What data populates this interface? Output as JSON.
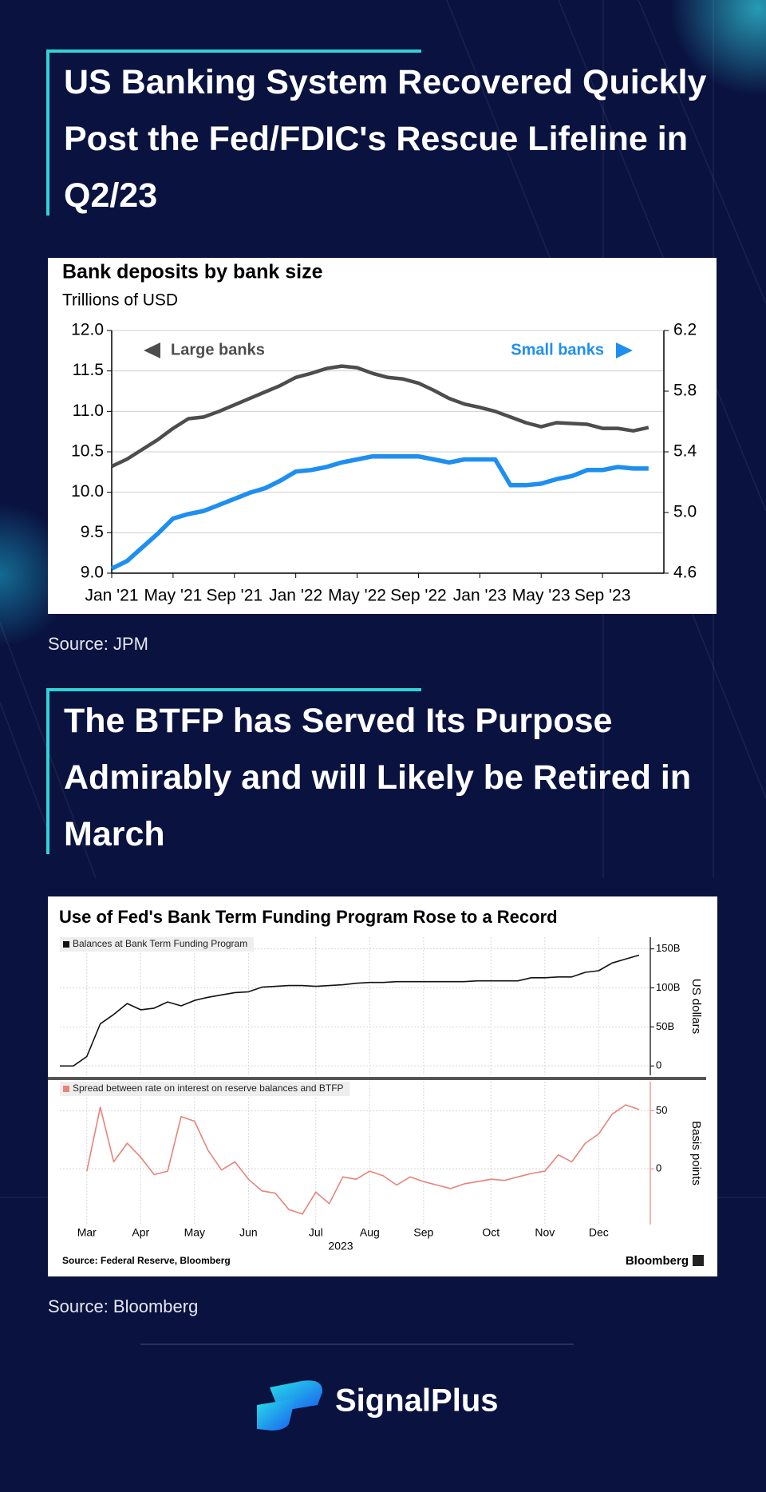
{
  "sections": [
    {
      "heading": "US Banking System Recovered Quickly Post the Fed/FDIC's Rescue Lifeline in Q2/23",
      "source": "Source: JPM"
    },
    {
      "heading": "The BTFP has Served Its Purpose Admirably and will Likely be Retired in March",
      "source": "Source: Bloomberg"
    }
  ],
  "chart_data": [
    {
      "type": "line",
      "title": "Bank deposits by bank size",
      "subtitle": "Trillions of USD",
      "x": [
        "2021-01",
        "2021-02",
        "2021-03",
        "2021-04",
        "2021-05",
        "2021-06",
        "2021-07",
        "2021-08",
        "2021-09",
        "2021-10",
        "2021-11",
        "2021-12",
        "2022-01",
        "2022-02",
        "2022-03",
        "2022-04",
        "2022-05",
        "2022-06",
        "2022-07",
        "2022-08",
        "2022-09",
        "2022-10",
        "2022-11",
        "2022-12",
        "2023-01",
        "2023-02",
        "2023-03",
        "2023-04",
        "2023-05",
        "2023-06",
        "2023-07",
        "2023-08",
        "2023-09",
        "2023-10",
        "2023-11",
        "2023-12"
      ],
      "xlim": [
        "2021-01",
        "2024-01"
      ],
      "xticks": [
        {
          "value": "2021-01",
          "label": "Jan '21"
        },
        {
          "value": "2021-05",
          "label": "May '21"
        },
        {
          "value": "2021-09",
          "label": "Sep '21"
        },
        {
          "value": "2022-01",
          "label": "Jan '22"
        },
        {
          "value": "2022-05",
          "label": "May '22"
        },
        {
          "value": "2022-09",
          "label": "Sep '22"
        },
        {
          "value": "2023-01",
          "label": "Jan '23"
        },
        {
          "value": "2023-05",
          "label": "May '23"
        },
        {
          "value": "2023-09",
          "label": "Sep '23"
        }
      ],
      "ylim": [
        9,
        12
      ],
      "yticks": [
        {
          "value": 9,
          "label": "9.0"
        },
        9.5,
        {
          "value": 10,
          "label": "10.0"
        },
        10.5,
        {
          "value": 11,
          "label": "11.0"
        },
        11.5,
        {
          "value": 12,
          "label": "12.0"
        }
      ],
      "y2lim": [
        4.6,
        6.2
      ],
      "y2ticks": [
        4.6,
        {
          "value": 5,
          "label": "5.0"
        },
        5.4,
        5.8,
        6.2
      ],
      "grid": true,
      "series": [
        {
          "name": "Large banks",
          "color": "#4d4d4d",
          "values": [
            10.32,
            10.41,
            10.53,
            10.65,
            10.79,
            10.91,
            10.93,
            11.0,
            11.08,
            11.16,
            11.24,
            11.32,
            11.42,
            11.47,
            11.53,
            11.56,
            11.54,
            11.47,
            11.42,
            11.4,
            11.35,
            11.26,
            11.16,
            11.09,
            11.05,
            11.0,
            10.93,
            10.86,
            10.81,
            10.86,
            10.85,
            10.84,
            10.79,
            10.79,
            10.76,
            10.8
          ]
        },
        {
          "name": "Small banks",
          "color": "#1e8ff0",
          "axis": "y2",
          "values": [
            4.63,
            4.68,
            4.77,
            4.86,
            4.96,
            4.99,
            5.01,
            5.05,
            5.09,
            5.13,
            5.16,
            5.21,
            5.27,
            5.28,
            5.3,
            5.33,
            5.35,
            5.37,
            5.37,
            5.37,
            5.37,
            5.35,
            5.33,
            5.35,
            5.35,
            5.35,
            5.18,
            5.18,
            5.19,
            5.22,
            5.24,
            5.28,
            5.28,
            5.3,
            5.29,
            5.29
          ]
        }
      ]
    },
    {
      "type": "line",
      "title": "Use of Fed's Bank Term Funding Program Rose to a Record",
      "categories": [
        null,
        null,
        "Mar",
        null,
        null,
        null,
        "Apr",
        null,
        null,
        null,
        "May",
        null,
        null,
        null,
        "Jun",
        null,
        null,
        null,
        null,
        "Jul",
        null,
        null,
        null,
        "Aug",
        null,
        null,
        null,
        "Sep",
        null,
        null,
        null,
        null,
        "Oct",
        null,
        null,
        null,
        "Nov",
        null,
        null,
        null,
        "Dec",
        null,
        null,
        null
      ],
      "x_label": "2023",
      "grid": true,
      "panels": [
        {
          "y_label": "US dollars",
          "ylim": [
            -12,
            165
          ],
          "yticks": [
            0,
            {
              "value": 50,
              "label": "50B"
            },
            {
              "value": 100,
              "label": "100B"
            },
            {
              "value": 150,
              "label": "150B"
            }
          ],
          "axis_color": "#000000",
          "series": [
            {
              "name": "Balances at Bank Term Funding Program",
              "color": "#111111",
              "values": [
                0,
                0,
                12,
                54,
                66,
                80,
                72,
                74,
                82,
                77,
                84,
                88,
                91,
                94,
                95,
                101,
                102,
                103,
                103,
                102,
                103,
                104,
                106,
                107,
                107,
                108,
                108,
                108,
                108,
                108,
                108,
                109,
                109,
                109,
                109,
                113,
                113,
                114,
                114,
                120,
                122,
                132,
                137,
                142
              ]
            }
          ]
        },
        {
          "y_label": "Basis points",
          "ylim": [
            -48,
            75
          ],
          "yticks": [
            0,
            50
          ],
          "axis_color": "#e8837a",
          "series": [
            {
              "name": "Spread between rate on interest on reserve balances and BTFP",
              "color": "#e8837a",
              "values": [
                null,
                null,
                -2,
                53,
                6,
                22,
                10,
                -5,
                -2,
                45,
                41,
                16,
                -1,
                6,
                -9,
                -19,
                -21,
                -35,
                -39,
                -20,
                -30,
                -7,
                -9,
                -2,
                -6,
                -14,
                -7,
                -11,
                -14,
                -17,
                -13,
                -11,
                -9,
                -10,
                -7,
                -4,
                -2,
                12,
                6,
                22,
                30,
                47,
                55,
                51
              ]
            }
          ]
        }
      ],
      "source": "Source: Federal Reserve, Bloomberg",
      "credit": "Bloomberg"
    }
  ],
  "brand": "SignalPlus"
}
